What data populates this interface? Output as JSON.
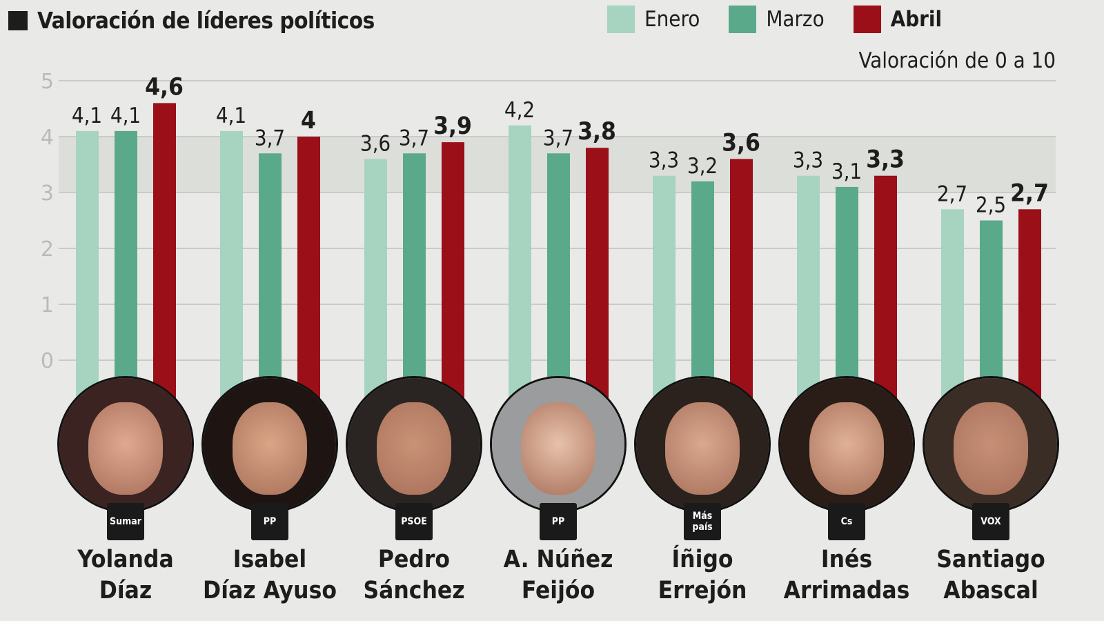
{
  "chart_data": {
    "type": "bar",
    "title": "Valoración de líderes políticos",
    "subtitle": "Valoración de 0 a 10",
    "categories": [
      "Yolanda Díaz",
      "Isabel Díaz Ayuso",
      "Pedro Sánchez",
      "A. Núñez Feijóo",
      "Íñigo Errejón",
      "Inés Arrimadas",
      "Santiago Abascal"
    ],
    "series": [
      {
        "name": "Enero",
        "color": "#a7d3c1",
        "values": [
          4.1,
          4.1,
          3.6,
          4.2,
          3.3,
          3.3,
          2.7
        ],
        "labels": [
          "4,1",
          "4,1",
          "3,6",
          "4,2",
          "3,3",
          "3,3",
          "2,7"
        ]
      },
      {
        "name": "Marzo",
        "color": "#5aa98b",
        "values": [
          4.1,
          3.7,
          3.7,
          3.7,
          3.2,
          3.1,
          2.5
        ],
        "labels": [
          "4,1",
          "3,7",
          "3,7",
          "3,7",
          "3,2",
          "3,1",
          "2,5"
        ]
      },
      {
        "name": "Abril",
        "color": "#9b0f18",
        "values": [
          4.6,
          4.0,
          3.9,
          3.8,
          3.6,
          3.3,
          2.7
        ],
        "labels": [
          "4,6",
          "4",
          "3,9",
          "3,8",
          "3,6",
          "3,3",
          "2,7"
        ]
      }
    ],
    "yticks": [
      0,
      1,
      2,
      3,
      4,
      5
    ],
    "ylim": [
      0,
      5
    ],
    "highlight_band": [
      3,
      4
    ],
    "legend": "top-right"
  },
  "people": [
    {
      "first": "Yolanda",
      "last": "Díaz",
      "party": "Sumar"
    },
    {
      "first": "Isabel",
      "last": "Díaz Ayuso",
      "party": "PP"
    },
    {
      "first": "Pedro",
      "last": "Sánchez",
      "party": "PSOE"
    },
    {
      "first": "A. Núñez",
      "last": "Feijóo",
      "party": "PP"
    },
    {
      "first": "Íñigo",
      "last": "Errejón",
      "party": "Más país"
    },
    {
      "first": "Inés",
      "last": "Arrimadas",
      "party": "Cs"
    },
    {
      "first": "Santiago",
      "last": "Abascal",
      "party": "VOX"
    }
  ]
}
